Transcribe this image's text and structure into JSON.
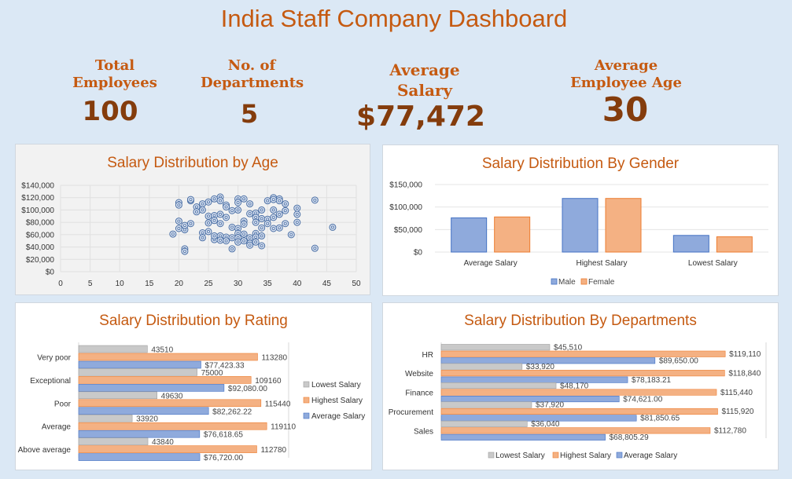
{
  "title": "India Staff Company Dashboard",
  "kpis": {
    "total_employees": {
      "label_line1": "Total",
      "label_line2": "Employees",
      "value": "100"
    },
    "departments": {
      "label_line1": "No. of",
      "label_line2": "Departments",
      "value": "5"
    },
    "avg_salary": {
      "label_line1": "Average",
      "label_line2": "Salary",
      "value": "$77,472"
    },
    "avg_age": {
      "label_line1": "Average",
      "label_line2": "Employee Age",
      "value": "30"
    }
  },
  "colors": {
    "accent": "#c55a11",
    "kpi_value": "#843c0c",
    "lowest": "#c9c9c9",
    "highest": "#f4b183",
    "average": "#8faadc",
    "male": "#8faadc",
    "female": "#f4b183"
  },
  "chart_data": [
    {
      "id": "age",
      "type": "scatter",
      "title": "Salary Distribution by Age",
      "xlim": [
        0,
        50
      ],
      "ylim": [
        0,
        140000
      ],
      "x_ticks": [
        "0",
        "5",
        "10",
        "15",
        "20",
        "25",
        "30",
        "35",
        "40",
        "45",
        "50"
      ],
      "y_ticks": [
        "$0",
        "$20,000",
        "$40,000",
        "$60,000",
        "$80,000",
        "$100,000",
        "$120,000",
        "$140,000"
      ],
      "grid": true,
      "points": [
        [
          19,
          61000
        ],
        [
          20,
          112000
        ],
        [
          20,
          108000
        ],
        [
          20,
          82000
        ],
        [
          20,
          70000
        ],
        [
          21,
          37000
        ],
        [
          21,
          33000
        ],
        [
          21,
          68000
        ],
        [
          21,
          75000
        ],
        [
          22,
          115000
        ],
        [
          22,
          117000
        ],
        [
          22,
          78000
        ],
        [
          23,
          105000
        ],
        [
          23,
          97000
        ],
        [
          24,
          110000
        ],
        [
          24,
          63000
        ],
        [
          24,
          55000
        ],
        [
          24,
          100000
        ],
        [
          25,
          90000
        ],
        [
          25,
          79000
        ],
        [
          25,
          65000
        ],
        [
          25,
          113000
        ],
        [
          26,
          118000
        ],
        [
          26,
          52000
        ],
        [
          26,
          58000
        ],
        [
          26,
          91000
        ],
        [
          26,
          83000
        ],
        [
          27,
          121000
        ],
        [
          27,
          115000
        ],
        [
          27,
          93000
        ],
        [
          27,
          78000
        ],
        [
          27,
          58000
        ],
        [
          27,
          51000
        ],
        [
          28,
          108000
        ],
        [
          28,
          105000
        ],
        [
          28,
          88000
        ],
        [
          28,
          56000
        ],
        [
          28,
          50000
        ],
        [
          29,
          37000
        ],
        [
          29,
          72000
        ],
        [
          29,
          99000
        ],
        [
          29,
          55000
        ],
        [
          30,
          118000
        ],
        [
          30,
          112000
        ],
        [
          30,
          100000
        ],
        [
          30,
          70000
        ],
        [
          30,
          62000
        ],
        [
          30,
          55000
        ],
        [
          30,
          48000
        ],
        [
          31,
          118000
        ],
        [
          31,
          82000
        ],
        [
          31,
          77000
        ],
        [
          31,
          61000
        ],
        [
          31,
          50000
        ],
        [
          32,
          110000
        ],
        [
          32,
          94000
        ],
        [
          32,
          55000
        ],
        [
          32,
          46000
        ],
        [
          32,
          43000
        ],
        [
          33,
          95000
        ],
        [
          33,
          88000
        ],
        [
          33,
          80000
        ],
        [
          33,
          62000
        ],
        [
          33,
          56000
        ],
        [
          33,
          48000
        ],
        [
          34,
          100000
        ],
        [
          34,
          86000
        ],
        [
          34,
          71000
        ],
        [
          34,
          58000
        ],
        [
          34,
          42000
        ],
        [
          35,
          115000
        ],
        [
          35,
          85000
        ],
        [
          35,
          78000
        ],
        [
          36,
          120000
        ],
        [
          36,
          117000
        ],
        [
          36,
          88000
        ],
        [
          36,
          70000
        ],
        [
          36,
          100000
        ],
        [
          37,
          118000
        ],
        [
          37,
          115000
        ],
        [
          37,
          71000
        ],
        [
          37,
          93000
        ],
        [
          38,
          110000
        ],
        [
          38,
          99000
        ],
        [
          38,
          78000
        ],
        [
          39,
          60000
        ],
        [
          40,
          103000
        ],
        [
          40,
          93000
        ],
        [
          40,
          80000
        ],
        [
          43,
          116000
        ],
        [
          43,
          38000
        ],
        [
          46,
          72000
        ]
      ]
    },
    {
      "id": "gender",
      "type": "bar",
      "title": "Salary Distribution By Gender",
      "categories": [
        "Average Salary",
        "Highest Salary",
        "Lowest Salary"
      ],
      "series": [
        {
          "name": "Male",
          "values": [
            76000,
            119110,
            37000
          ]
        },
        {
          "name": "Female",
          "values": [
            78000,
            119110,
            33920
          ]
        }
      ],
      "ylim": [
        0,
        150000
      ],
      "y_ticks": [
        "$0",
        "$50,000",
        "$100,000",
        "$150,000"
      ],
      "legend": "bottom"
    },
    {
      "id": "rating",
      "type": "bar",
      "orientation": "horizontal",
      "title": "Salary Distribution by Rating",
      "categories": [
        "Very poor",
        "Exceptional",
        "Poor",
        "Average",
        "Above average"
      ],
      "series": [
        {
          "name": "Lowest Salary",
          "values": [
            43510,
            75000,
            49630,
            33920,
            43840
          ],
          "labels": [
            "43510",
            "75000",
            "49630",
            "33920",
            "43840"
          ]
        },
        {
          "name": "Highest Salary",
          "values": [
            113280,
            109160,
            115440,
            119110,
            112780
          ],
          "labels": [
            "113280",
            "109160",
            "115440",
            "119110",
            "112780"
          ]
        },
        {
          "name": "Average Salary",
          "values": [
            77423.33,
            92080.0,
            82262.22,
            76618.65,
            76720.0
          ],
          "labels": [
            "$77,423.33",
            "$92,080.00",
            "$82,262.22",
            "$76,618.65",
            "$76,720.00"
          ]
        }
      ],
      "xlim": [
        0,
        125000
      ],
      "legend": "right"
    },
    {
      "id": "dept",
      "type": "bar",
      "orientation": "horizontal",
      "title": "Salary Distribution By Departments",
      "categories": [
        "HR",
        "Website",
        "Finance",
        "Procurement",
        "Sales"
      ],
      "series": [
        {
          "name": "Lowest Salary",
          "values": [
            45510,
            33920,
            48170,
            37920,
            36040
          ],
          "labels": [
            "$45,510",
            "$33,920",
            "$48,170",
            "$37,920",
            "$36,040"
          ]
        },
        {
          "name": "Highest Salary",
          "values": [
            119110,
            118840,
            115440,
            115920,
            112780
          ],
          "labels": [
            "$119,110",
            "$118,840",
            "$115,440",
            "$115,920",
            "$112,780"
          ]
        },
        {
          "name": "Average Salary",
          "values": [
            89650.0,
            78183.21,
            74621.0,
            81850.65,
            68805.29
          ],
          "labels": [
            "$89,650.00",
            "$78,183.21",
            "$74,621.00",
            "$81,850.65",
            "$68,805.29"
          ]
        }
      ],
      "xlim": [
        0,
        125000
      ],
      "legend": "bottom"
    }
  ]
}
